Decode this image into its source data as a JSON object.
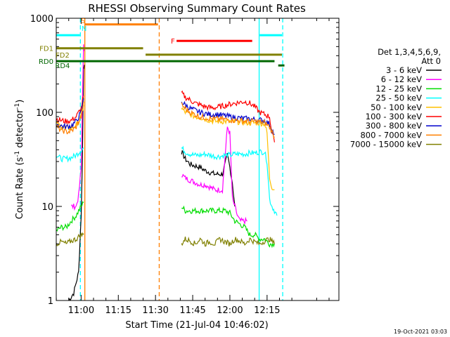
{
  "chart_data": {
    "type": "line",
    "title": "RHESSI Observing Summary Count Rates",
    "xlabel": "Start Time (21-Jul-04 10:46:02)",
    "ylabel_main": "Count Rate (s",
    "ylabel_exp1": "-1",
    "ylabel_mid": " detector",
    "ylabel_exp2": "-1",
    "ylabel_end": ")",
    "yscale": "log",
    "ylim": [
      1,
      1000
    ],
    "xlim_minutes": [
      -10.03,
      103.97
    ],
    "x_ticks": [
      {
        "m": 0,
        "label": "11:00"
      },
      {
        "m": 15,
        "label": "11:15"
      },
      {
        "m": 30,
        "label": "11:30"
      },
      {
        "m": 45,
        "label": "11:45"
      },
      {
        "m": 60,
        "label": "12:00"
      },
      {
        "m": 75,
        "label": "12:15"
      }
    ],
    "y_ticks": [
      {
        "v": 1,
        "label": "1"
      },
      {
        "v": 10,
        "label": "10"
      },
      {
        "v": 100,
        "label": "100"
      },
      {
        "v": 1000,
        "label": "1000"
      }
    ],
    "legend_header": [
      "Det 1,3,4,5,6,9,",
      "Att 0"
    ],
    "footer_date": "19-Oct-2021 03:03",
    "series": [
      {
        "name": "3 - 6 keV",
        "color": "#000000",
        "seg1": [
          [
            -5,
            1.0
          ],
          [
            -3,
            1.2
          ],
          [
            -1,
            2.0
          ],
          [
            0,
            8
          ],
          [
            0.5,
            30
          ],
          [
            1,
            300
          ],
          [
            1.3,
            320
          ]
        ],
        "seg2": [
          [
            40.5,
            38
          ],
          [
            42,
            32
          ],
          [
            44,
            28
          ],
          [
            46,
            27
          ],
          [
            48,
            26
          ],
          [
            50,
            24
          ],
          [
            52,
            23
          ],
          [
            54,
            22
          ],
          [
            56,
            22
          ],
          [
            57,
            22
          ],
          [
            59,
            35
          ],
          [
            60,
            26
          ],
          [
            61,
            18
          ],
          [
            62,
            10
          ]
        ]
      },
      {
        "name": "6 - 12 keV",
        "color": "#ff00ff",
        "seg1": [
          [
            -4,
            10
          ],
          [
            -2,
            10
          ],
          [
            -1,
            13
          ],
          [
            0,
            25
          ],
          [
            0.5,
            120
          ],
          [
            1,
            500
          ],
          [
            1.3,
            450
          ]
        ],
        "seg2": [
          [
            40.5,
            22
          ],
          [
            42,
            20
          ],
          [
            44,
            19
          ],
          [
            46,
            18
          ],
          [
            48,
            17
          ],
          [
            50,
            17
          ],
          [
            52,
            16
          ],
          [
            54,
            15
          ],
          [
            56,
            15
          ],
          [
            57,
            15
          ],
          [
            59,
            70
          ],
          [
            60,
            60
          ],
          [
            61,
            12
          ],
          [
            62,
            10
          ],
          [
            63,
            8
          ],
          [
            64,
            7
          ],
          [
            65,
            7
          ],
          [
            66,
            7
          ],
          [
            67,
            7
          ]
        ]
      },
      {
        "name": "12 - 25 keV",
        "color": "#00dd00",
        "seg1": [
          [
            -10,
            5.5
          ],
          [
            -8,
            6
          ],
          [
            -6,
            6
          ],
          [
            -4,
            7
          ],
          [
            -2,
            8
          ],
          [
            0,
            10
          ],
          [
            1,
            11
          ]
        ],
        "seg2": [
          [
            40.5,
            10
          ],
          [
            42,
            9
          ],
          [
            44,
            9
          ],
          [
            46,
            9
          ],
          [
            48,
            9
          ],
          [
            50,
            9
          ],
          [
            52,
            9
          ],
          [
            54,
            9
          ],
          [
            56,
            9
          ],
          [
            58,
            9
          ],
          [
            60,
            8.5
          ],
          [
            62,
            7
          ],
          [
            64,
            6.5
          ],
          [
            66,
            6
          ],
          [
            68,
            5
          ],
          [
            70,
            5
          ],
          [
            72,
            4.5
          ],
          [
            74,
            4.5
          ],
          [
            76,
            4
          ],
          [
            78,
            4
          ]
        ]
      },
      {
        "name": "25 - 50 keV",
        "color": "#00ffff",
        "seg1": [
          [
            -10,
            35
          ],
          [
            -8,
            32
          ],
          [
            -6,
            32
          ],
          [
            -4,
            33
          ],
          [
            -2,
            35
          ],
          [
            0,
            40
          ],
          [
            1,
            42
          ]
        ],
        "seg2": [
          [
            40.5,
            42
          ],
          [
            42,
            38
          ],
          [
            44,
            36
          ],
          [
            46,
            35
          ],
          [
            48,
            35
          ],
          [
            50,
            36
          ],
          [
            52,
            35
          ],
          [
            54,
            34
          ],
          [
            56,
            34
          ],
          [
            58,
            35
          ],
          [
            60,
            35
          ],
          [
            62,
            36
          ],
          [
            64,
            36
          ],
          [
            66,
            36
          ],
          [
            68,
            37
          ],
          [
            70,
            37
          ],
          [
            72,
            38
          ],
          [
            74,
            38
          ],
          [
            75,
            30
          ],
          [
            76,
            12
          ],
          [
            77,
            10
          ],
          [
            78,
            9
          ],
          [
            79,
            8
          ]
        ]
      },
      {
        "name": "50 - 100 keV",
        "color": "#ffc000",
        "seg1": [
          [
            -10,
            75
          ],
          [
            -8,
            70
          ],
          [
            -6,
            68
          ],
          [
            -4,
            68
          ],
          [
            -2,
            72
          ],
          [
            0,
            90
          ],
          [
            1,
            120
          ]
        ],
        "seg2": [
          [
            40.5,
            110
          ],
          [
            42,
            100
          ],
          [
            44,
            95
          ],
          [
            46,
            90
          ],
          [
            48,
            88
          ],
          [
            50,
            85
          ],
          [
            52,
            82
          ],
          [
            54,
            80
          ],
          [
            56,
            80
          ],
          [
            58,
            80
          ],
          [
            60,
            80
          ],
          [
            62,
            80
          ],
          [
            64,
            79
          ],
          [
            66,
            78
          ],
          [
            68,
            77
          ],
          [
            70,
            77
          ],
          [
            72,
            77
          ],
          [
            74,
            76
          ],
          [
            75,
            60
          ],
          [
            76,
            20
          ],
          [
            77,
            16
          ],
          [
            78,
            15
          ]
        ]
      },
      {
        "name": "100 - 300 keV",
        "color": "#ff0000",
        "seg1": [
          [
            -10,
            85
          ],
          [
            -8,
            82
          ],
          [
            -6,
            80
          ],
          [
            -4,
            82
          ],
          [
            -2,
            90
          ],
          [
            0,
            110
          ],
          [
            1,
            150
          ]
        ],
        "seg2": [
          [
            40.5,
            160
          ],
          [
            42,
            145
          ],
          [
            44,
            135
          ],
          [
            46,
            125
          ],
          [
            48,
            120
          ],
          [
            50,
            115
          ],
          [
            52,
            112
          ],
          [
            54,
            112
          ],
          [
            56,
            115
          ],
          [
            58,
            118
          ],
          [
            60,
            122
          ],
          [
            62,
            125
          ],
          [
            64,
            128
          ],
          [
            66,
            130
          ],
          [
            68,
            125
          ],
          [
            70,
            115
          ],
          [
            72,
            100
          ],
          [
            74,
            95
          ],
          [
            76,
            90
          ],
          [
            77,
            60
          ],
          [
            78,
            48
          ]
        ]
      },
      {
        "name": "300 - 800 keV",
        "color": "#0000cc",
        "seg1": [
          [
            -10,
            75
          ],
          [
            -8,
            72
          ],
          [
            -6,
            70
          ],
          [
            -4,
            72
          ],
          [
            -2,
            80
          ],
          [
            0,
            100
          ],
          [
            1,
            140
          ]
        ],
        "seg2": [
          [
            40.5,
            130
          ],
          [
            42,
            120
          ],
          [
            44,
            110
          ],
          [
            46,
            105
          ],
          [
            48,
            100
          ],
          [
            50,
            97
          ],
          [
            52,
            95
          ],
          [
            54,
            95
          ],
          [
            56,
            94
          ],
          [
            58,
            92
          ],
          [
            60,
            90
          ],
          [
            62,
            88
          ],
          [
            64,
            87
          ],
          [
            66,
            86
          ],
          [
            68,
            85
          ],
          [
            70,
            84
          ],
          [
            72,
            83
          ],
          [
            74,
            82
          ],
          [
            76,
            75
          ],
          [
            77,
            65
          ],
          [
            78,
            58
          ]
        ]
      },
      {
        "name": "800 - 7000 keV",
        "color": "#ff7f00",
        "seg1": [
          [
            -10,
            70
          ],
          [
            -8,
            65
          ],
          [
            -6,
            62
          ],
          [
            -4,
            63
          ],
          [
            -2,
            70
          ],
          [
            0,
            90
          ],
          [
            1,
            130
          ]
        ],
        "seg2": [
          [
            40.5,
            120
          ],
          [
            42,
            110
          ],
          [
            44,
            100
          ],
          [
            46,
            95
          ],
          [
            48,
            90
          ],
          [
            50,
            88
          ],
          [
            52,
            86
          ],
          [
            54,
            85
          ],
          [
            56,
            85
          ],
          [
            58,
            84
          ],
          [
            60,
            83
          ],
          [
            62,
            82
          ],
          [
            64,
            82
          ],
          [
            66,
            81
          ],
          [
            68,
            80
          ],
          [
            70,
            80
          ],
          [
            72,
            79
          ],
          [
            74,
            78
          ],
          [
            76,
            70
          ],
          [
            77,
            62
          ],
          [
            78,
            55
          ]
        ]
      },
      {
        "name": "7000 - 15000 keV",
        "color": "#808000",
        "seg1": [
          [
            -10,
            4
          ],
          [
            -8,
            4.2
          ],
          [
            -6,
            4
          ],
          [
            -4,
            4.3
          ],
          [
            -2,
            4.5
          ],
          [
            0,
            5
          ],
          [
            1,
            5
          ]
        ],
        "seg2": [
          [
            40.5,
            4
          ],
          [
            42,
            4.5
          ],
          [
            44,
            4.3
          ],
          [
            46,
            4
          ],
          [
            48,
            4.5
          ],
          [
            50,
            4
          ],
          [
            52,
            4.2
          ],
          [
            54,
            4
          ],
          [
            56,
            4.5
          ],
          [
            58,
            4.2
          ],
          [
            60,
            4
          ],
          [
            62,
            4.5
          ],
          [
            64,
            4.3
          ],
          [
            66,
            4
          ],
          [
            68,
            4.5
          ],
          [
            70,
            4.2
          ],
          [
            72,
            4
          ],
          [
            74,
            4.3
          ],
          [
            76,
            4.5
          ],
          [
            78,
            4
          ]
        ]
      }
    ],
    "flags": [
      {
        "label": "S",
        "color": "#ff7f00",
        "label_m": 0.8,
        "bar": [
          1.5,
          31
        ],
        "bar_level": 860
      },
      {
        "label": "N",
        "color": "#00ffff",
        "label_m": 1.2,
        "bar": [
          -10.03,
          -0.5
        ],
        "bar_level": 660,
        "bar2": [
          72,
          81
        ],
        "bar2_level": 660
      },
      {
        "label": "F",
        "color": "#ff0000",
        "label_m": 37,
        "bar": [
          38.5,
          69
        ],
        "bar_level": 575
      },
      {
        "label": "FD1",
        "color": "#808000",
        "label_m": -20,
        "bar": [
          -10.03,
          25
        ],
        "bar_level": 480
      },
      {
        "label": "FD2",
        "color": "#808000",
        "label_m": -7.5,
        "bar": [
          26,
          81
        ],
        "bar_level": 410
      },
      {
        "label": "RD0",
        "color": "#006600",
        "label_m": -20,
        "bar": [
          -10.03,
          78
        ],
        "bar_level": 350
      },
      {
        "label": "RD4",
        "color": "#006600",
        "label_m": -7.5,
        "bar": [
          79.5,
          82
        ],
        "bar_level": 315
      }
    ],
    "vlines": [
      {
        "m": -0.3,
        "color": "#00ffff",
        "style": "dashed"
      },
      {
        "m": 1.5,
        "color": "#ff7f00",
        "style": "solid"
      },
      {
        "m": 31.5,
        "color": "#ff7f00",
        "style": "dashed"
      },
      {
        "m": 71.8,
        "color": "#00ffff",
        "style": "solid"
      },
      {
        "m": 81.3,
        "color": "#00ffff",
        "style": "dashed"
      }
    ]
  }
}
